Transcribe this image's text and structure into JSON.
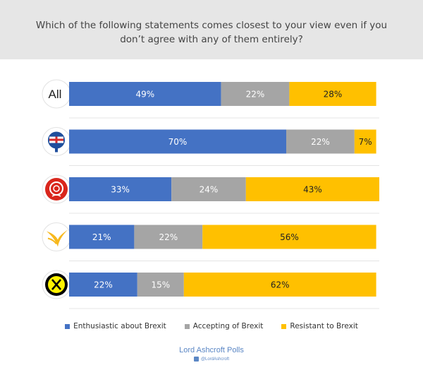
{
  "question": "Which of the following statements comes closest to your view even if you don’t agree with any of them entirely?",
  "colors": {
    "enthusiastic": "#4472c4",
    "accepting": "#a5a5a5",
    "resistant": "#ffc000",
    "header_bg": "#e6e6e6"
  },
  "chart_data": {
    "type": "bar",
    "orientation": "horizontal",
    "stacked": true,
    "title": "Which of the following statements comes closest to your view even if you don’t agree with any of them entirely?",
    "categories": [
      "All",
      "Conservative",
      "Labour",
      "Liberal Democrat",
      "SNP"
    ],
    "row_labels": [
      "All",
      "",
      "",
      "",
      ""
    ],
    "series": [
      {
        "name": "Enthusiastic about Brexit",
        "values": [
          49,
          70,
          33,
          21,
          22
        ]
      },
      {
        "name": "Accepting of Brexit",
        "values": [
          22,
          22,
          24,
          22,
          15
        ]
      },
      {
        "name": "Resistant to Brexit",
        "values": [
          28,
          7,
          43,
          56,
          62
        ]
      }
    ],
    "value_suffix": "%",
    "xlim": [
      0,
      100
    ],
    "legend": "bottom-center"
  },
  "legend": {
    "items": [
      {
        "label": "Enthusiastic about Brexit"
      },
      {
        "label": "Accepting of Brexit"
      },
      {
        "label": "Resistant to Brexit"
      }
    ]
  },
  "footer": {
    "brand": "Lord Ashcroft Polls",
    "handle": "@LordAshcroft"
  }
}
